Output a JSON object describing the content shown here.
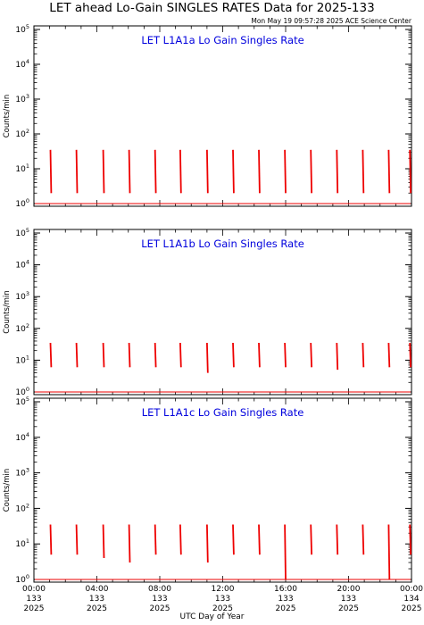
{
  "title": "LET ahead Lo-Gain SINGLES RATES Data for 2025-133",
  "timestamp": "Mon May 19 09:57:28 2025 ACE Science Center",
  "xlabel": "UTC Day of Year",
  "colors": {
    "data": "#ee0000",
    "panel_title": "#0000dd",
    "axis": "#000000"
  },
  "chart_data": [
    {
      "type": "line",
      "title": "LET L1A1a Lo Gain Singles Rate",
      "ylabel": "Counts/min",
      "yscale": "log",
      "ylim": [
        1,
        100000
      ],
      "yticks": [
        1,
        10,
        100,
        1000,
        10000,
        100000
      ],
      "xlim": [
        0,
        24
      ],
      "x_units": "hours UTC",
      "bursts": [
        {
          "x": 1.05,
          "top": 35,
          "bottom": 2
        },
        {
          "x": 2.7,
          "top": 35,
          "bottom": 2
        },
        {
          "x": 4.4,
          "top": 35,
          "bottom": 2
        },
        {
          "x": 6.05,
          "top": 35,
          "bottom": 2
        },
        {
          "x": 7.7,
          "top": 35,
          "bottom": 2
        },
        {
          "x": 9.3,
          "top": 35,
          "bottom": 2
        },
        {
          "x": 11.0,
          "top": 35,
          "bottom": 2
        },
        {
          "x": 12.65,
          "top": 35,
          "bottom": 2
        },
        {
          "x": 14.3,
          "top": 35,
          "bottom": 2
        },
        {
          "x": 15.95,
          "top": 35,
          "bottom": 2
        },
        {
          "x": 17.6,
          "top": 35,
          "bottom": 2
        },
        {
          "x": 19.25,
          "top": 35,
          "bottom": 2
        },
        {
          "x": 20.9,
          "top": 35,
          "bottom": 2
        },
        {
          "x": 22.55,
          "top": 35,
          "bottom": 2
        },
        {
          "x": 23.9,
          "top": 35,
          "bottom": 2
        }
      ]
    },
    {
      "type": "line",
      "title": "LET L1A1b Lo Gain Singles Rate",
      "ylabel": "Counts/min",
      "yscale": "log",
      "ylim": [
        1,
        100000
      ],
      "yticks": [
        1,
        10,
        100,
        1000,
        10000,
        100000
      ],
      "xlim": [
        0,
        24
      ],
      "x_units": "hours UTC",
      "bursts": [
        {
          "x": 1.05,
          "top": 35,
          "bottom": 6
        },
        {
          "x": 2.7,
          "top": 35,
          "bottom": 6
        },
        {
          "x": 4.4,
          "top": 35,
          "bottom": 6
        },
        {
          "x": 6.05,
          "top": 35,
          "bottom": 6
        },
        {
          "x": 7.7,
          "top": 35,
          "bottom": 6
        },
        {
          "x": 9.3,
          "top": 35,
          "bottom": 6
        },
        {
          "x": 11.0,
          "top": 35,
          "bottom": 4
        },
        {
          "x": 12.65,
          "top": 35,
          "bottom": 6
        },
        {
          "x": 14.3,
          "top": 35,
          "bottom": 6
        },
        {
          "x": 15.95,
          "top": 35,
          "bottom": 6
        },
        {
          "x": 17.6,
          "top": 35,
          "bottom": 6
        },
        {
          "x": 19.25,
          "top": 35,
          "bottom": 5
        },
        {
          "x": 20.9,
          "top": 35,
          "bottom": 6
        },
        {
          "x": 22.55,
          "top": 35,
          "bottom": 6
        },
        {
          "x": 23.9,
          "top": 35,
          "bottom": 6
        }
      ]
    },
    {
      "type": "line",
      "title": "LET L1A1c Lo Gain Singles Rate",
      "ylabel": "Counts/min",
      "yscale": "log",
      "ylim": [
        1,
        100000
      ],
      "yticks": [
        1,
        10,
        100,
        1000,
        10000,
        100000
      ],
      "xlim": [
        0,
        24
      ],
      "x_units": "hours UTC",
      "xtick_labels": [
        [
          "00:00",
          "133",
          "2025"
        ],
        [
          "04:00",
          "133",
          "2025"
        ],
        [
          "08:00",
          "133",
          "2025"
        ],
        [
          "12:00",
          "133",
          "2025"
        ],
        [
          "16:00",
          "133",
          "2025"
        ],
        [
          "20:00",
          "133",
          "2025"
        ],
        [
          "00:00",
          "134",
          "2025"
        ]
      ],
      "bursts": [
        {
          "x": 1.05,
          "top": 35,
          "bottom": 5
        },
        {
          "x": 2.7,
          "top": 35,
          "bottom": 5
        },
        {
          "x": 4.4,
          "top": 35,
          "bottom": 4
        },
        {
          "x": 6.05,
          "top": 35,
          "bottom": 3
        },
        {
          "x": 7.7,
          "top": 35,
          "bottom": 5
        },
        {
          "x": 9.3,
          "top": 35,
          "bottom": 5
        },
        {
          "x": 11.0,
          "top": 35,
          "bottom": 3
        },
        {
          "x": 12.65,
          "top": 35,
          "bottom": 5
        },
        {
          "x": 14.3,
          "top": 35,
          "bottom": 5
        },
        {
          "x": 15.95,
          "top": 35,
          "bottom": 1
        },
        {
          "x": 17.6,
          "top": 35,
          "bottom": 5
        },
        {
          "x": 19.25,
          "top": 35,
          "bottom": 5
        },
        {
          "x": 20.9,
          "top": 35,
          "bottom": 5
        },
        {
          "x": 22.55,
          "top": 35,
          "bottom": 1
        },
        {
          "x": 23.9,
          "top": 35,
          "bottom": 5
        }
      ]
    }
  ]
}
